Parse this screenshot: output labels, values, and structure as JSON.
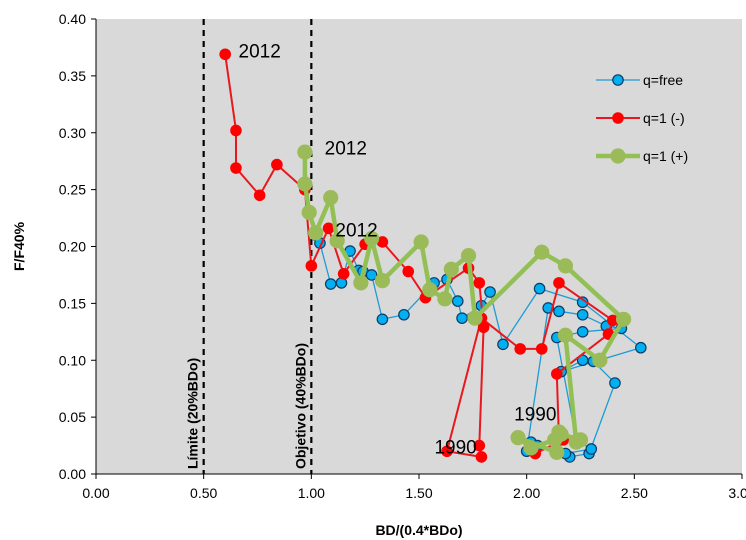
{
  "chart_data": {
    "type": "line",
    "xlabel": "BD/(0.4*BDo)",
    "ylabel": "F/F40%",
    "xlim": [
      0,
      3
    ],
    "ylim": [
      0,
      0.4
    ],
    "x_ticks": [
      "0.00",
      "0.50",
      "1.00",
      "1.50",
      "2.00",
      "2.50",
      "3.00"
    ],
    "y_ticks": [
      "0.00",
      "0.05",
      "0.10",
      "0.15",
      "0.20",
      "0.25",
      "0.30",
      "0.35",
      "0.40"
    ],
    "plot_background": "#d9d9d9",
    "gridlines": false,
    "legend_position": "right",
    "reference_lines": [
      {
        "x": 0.5,
        "label": "Límite (20%BDo)"
      },
      {
        "x": 1.0,
        "label": "Objetivo (40%BDo)"
      }
    ],
    "annotations": [
      {
        "text": "2012",
        "x": 0.76,
        "y": 0.366
      },
      {
        "text": "2012",
        "x": 1.16,
        "y": 0.281
      },
      {
        "text": "2012",
        "x": 1.21,
        "y": 0.209
      },
      {
        "text": "1990",
        "x": 2.04,
        "y": 0.047
      },
      {
        "text": "1990",
        "x": 1.67,
        "y": 0.018
      }
    ],
    "series": [
      {
        "name": "q=free",
        "color": "#1e9bd7",
        "marker": "#00b0f0",
        "x": [
          1.02,
          1.04,
          1.09,
          1.14,
          1.18,
          1.22,
          1.24,
          1.28,
          1.33,
          1.43,
          1.57,
          1.63,
          1.68,
          1.7,
          1.79,
          1.83,
          1.89,
          2.06,
          2.26,
          2.53,
          2.16,
          2.26,
          2.31,
          2.41,
          2.29,
          2.2,
          2.02,
          2.0,
          2.1,
          2.15,
          2.26,
          2.37,
          2.44,
          2.26,
          2.14,
          2.23,
          2.3,
          2.18,
          2.05
        ],
        "y": [
          0.21,
          0.203,
          0.167,
          0.168,
          0.196,
          0.179,
          0.178,
          0.175,
          0.136,
          0.14,
          0.168,
          0.171,
          0.152,
          0.137,
          0.148,
          0.16,
          0.114,
          0.163,
          0.151,
          0.111,
          0.09,
          0.1,
          0.099,
          0.08,
          0.018,
          0.015,
          0.028,
          0.02,
          0.146,
          0.143,
          0.14,
          0.13,
          0.128,
          0.125,
          0.12,
          0.03,
          0.022,
          0.018,
          0.025
        ]
      },
      {
        "name": "q=1 (-)",
        "color": "#e8191e",
        "marker": "#ff0000",
        "x": [
          0.6,
          0.65,
          0.65,
          0.76,
          0.84,
          0.97,
          1.0,
          1.08,
          1.15,
          1.25,
          1.33,
          1.45,
          1.53,
          1.73,
          1.78,
          1.8,
          1.78,
          1.79,
          1.63,
          1.79,
          1.97,
          2.07,
          2.15,
          2.4,
          2.38,
          2.14,
          2.15,
          2.17,
          2.04
        ],
        "y": [
          0.369,
          0.302,
          0.269,
          0.245,
          0.272,
          0.25,
          0.183,
          0.216,
          0.176,
          0.202,
          0.204,
          0.178,
          0.155,
          0.181,
          0.168,
          0.129,
          0.025,
          0.015,
          0.02,
          0.137,
          0.11,
          0.11,
          0.168,
          0.135,
          0.123,
          0.088,
          0.03,
          0.03,
          0.018
        ]
      },
      {
        "name": "q=1 (+)",
        "color": "#92c055",
        "marker": "#9bbb59",
        "x": [
          0.97,
          0.97,
          0.99,
          1.02,
          1.09,
          1.12,
          1.23,
          1.28,
          1.33,
          1.51,
          1.55,
          1.62,
          1.65,
          1.73,
          1.76,
          2.07,
          2.18,
          2.45,
          2.34,
          2.18,
          2.23,
          2.25,
          2.16,
          2.15,
          2.14,
          1.96,
          2.02,
          2.13
        ],
        "y": [
          0.283,
          0.255,
          0.23,
          0.212,
          0.243,
          0.205,
          0.168,
          0.207,
          0.17,
          0.204,
          0.162,
          0.154,
          0.18,
          0.192,
          0.137,
          0.195,
          0.183,
          0.136,
          0.1,
          0.122,
          0.028,
          0.03,
          0.035,
          0.037,
          0.019,
          0.032,
          0.023,
          0.03
        ]
      }
    ]
  }
}
